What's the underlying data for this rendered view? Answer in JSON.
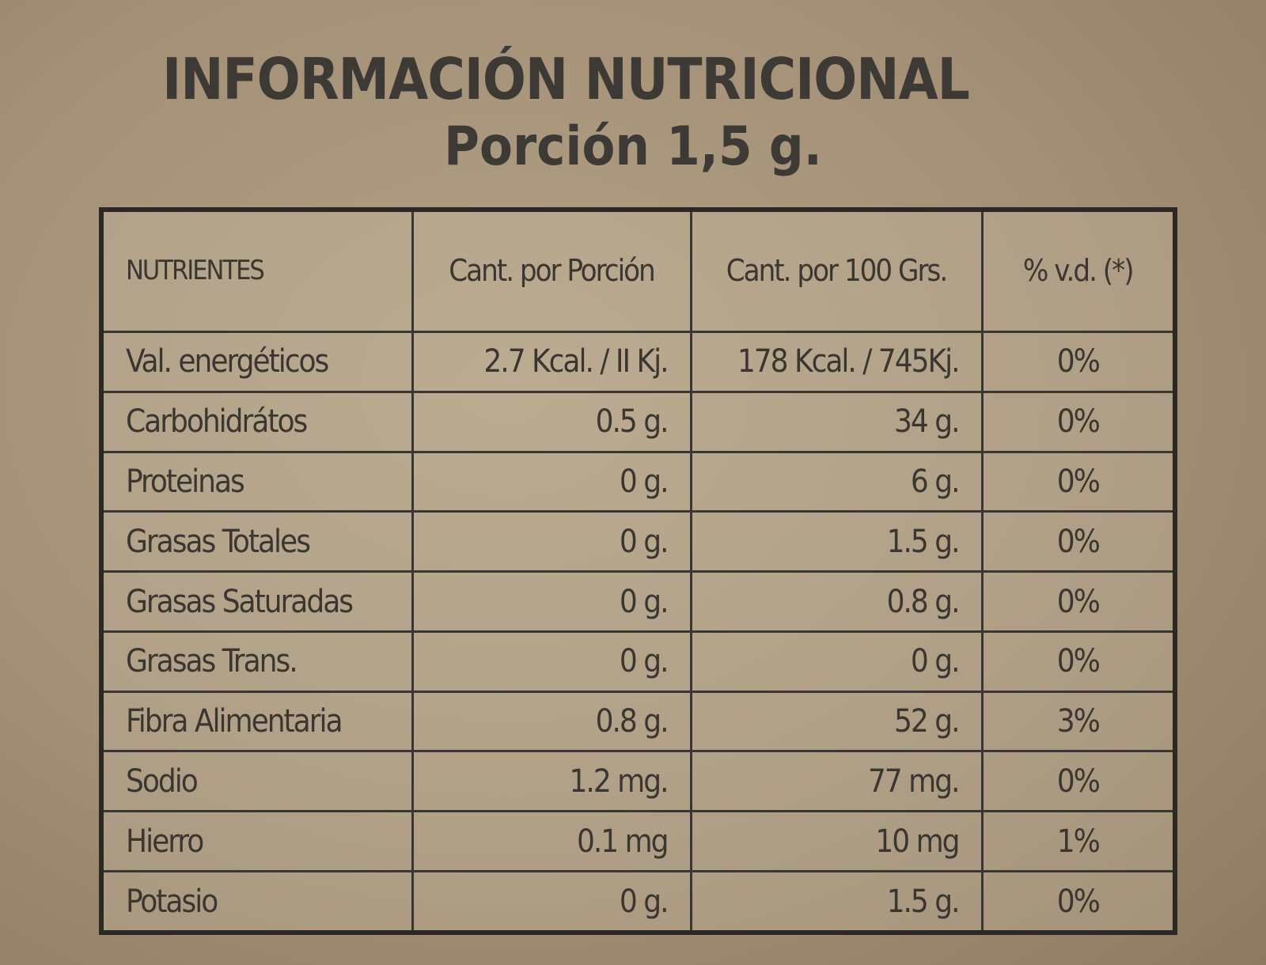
{
  "header": {
    "title": "INFORMACIÓN NUTRICIONAL",
    "subtitle": "Porción 1,5 g."
  },
  "table": {
    "header": [
      "NUTRIENTES",
      "Cant. por Porción",
      "Cant. por 100 Grs.",
      "% v.d. (*)"
    ],
    "rows": [
      [
        "Val. energéticos",
        "2.7 Kcal. / II Kj.",
        "178 Kcal. / 745Kj.",
        "0%"
      ],
      [
        "Carbohidrátos",
        "0.5 g.",
        "34 g.",
        "0%"
      ],
      [
        "Proteinas",
        "0 g.",
        "6 g.",
        "0%"
      ],
      [
        "Grasas Totales",
        "0 g.",
        "1.5 g.",
        "0%"
      ],
      [
        "Grasas Saturadas",
        "0 g.",
        "0.8 g.",
        "0%"
      ],
      [
        "Grasas Trans.",
        "0 g.",
        "0 g.",
        "0%"
      ],
      [
        "Fibra Alimentaria",
        "0.8 g.",
        "52 g.",
        "3%"
      ],
      [
        "Sodio",
        "1.2 mg.",
        "77 mg.",
        "0%"
      ],
      [
        "Hierro",
        "0.1 mg",
        "10 mg",
        "1%"
      ],
      [
        "Potasio",
        "0 g.",
        "1.5 g.",
        "0%"
      ]
    ]
  }
}
